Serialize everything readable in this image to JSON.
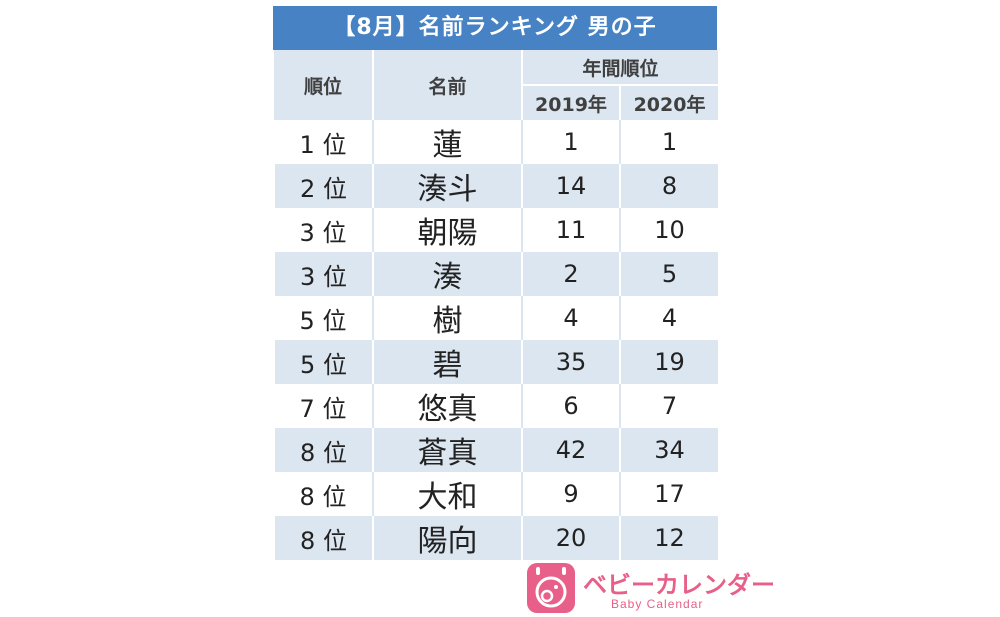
{
  "title": "【8月】名前ランキング 男の子",
  "headers": {
    "rank": "順位",
    "name": "名前",
    "annual": "年間順位",
    "year1": "2019年",
    "year2": "2020年"
  },
  "rows": [
    {
      "rank": "1 位",
      "name": "蓮",
      "y2019": "1",
      "y2020": "1"
    },
    {
      "rank": "2 位",
      "name": "湊斗",
      "y2019": "14",
      "y2020": "8"
    },
    {
      "rank": "3 位",
      "name": "朝陽",
      "y2019": "11",
      "y2020": "10"
    },
    {
      "rank": "3 位",
      "name": "湊",
      "y2019": "2",
      "y2020": "5"
    },
    {
      "rank": "5 位",
      "name": "樹",
      "y2019": "4",
      "y2020": "4"
    },
    {
      "rank": "5 位",
      "name": "碧",
      "y2019": "35",
      "y2020": "19"
    },
    {
      "rank": "7 位",
      "name": "悠真",
      "y2019": "6",
      "y2020": "7"
    },
    {
      "rank": "8 位",
      "name": "蒼真",
      "y2019": "42",
      "y2020": "34"
    },
    {
      "rank": "8 位",
      "name": "大和",
      "y2019": "9",
      "y2020": "17"
    },
    {
      "rank": "8 位",
      "name": "陽向",
      "y2019": "20",
      "y2020": "12"
    }
  ],
  "logo": {
    "text": "ベビーカレンダー",
    "sub": "Baby Calendar",
    "icon": "baby-calendar-logo-icon",
    "color": "#e8608a"
  },
  "colors": {
    "title_bg": "#4682c4",
    "header_bg": "#dce6f1",
    "stripe": "#dce6f1"
  }
}
